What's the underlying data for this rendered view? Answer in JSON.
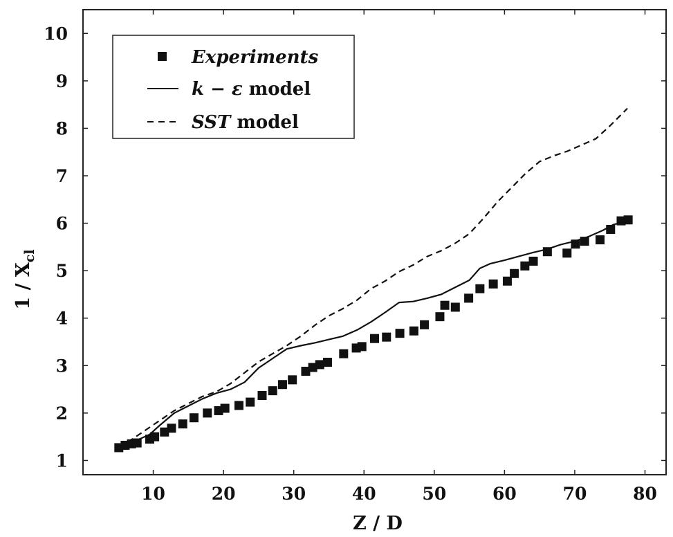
{
  "chart_data": {
    "type": "line",
    "xlabel": "Z / D",
    "ylabel_main": "1 / X",
    "ylabel_sub": "cl",
    "xlim": [
      0,
      83
    ],
    "ylim": [
      0.7,
      10.5
    ],
    "xticks": [
      10,
      20,
      30,
      40,
      50,
      60,
      70,
      80
    ],
    "yticks": [
      1,
      2,
      3,
      4,
      5,
      6,
      7,
      8,
      9,
      10
    ],
    "grid": false,
    "legend_position": "top-left",
    "legend": [
      {
        "marker": "square",
        "label_italic": "Experiments",
        "label_regular": ""
      },
      {
        "marker": "solid-line",
        "label_italic": "k − ε",
        "label_regular": " model"
      },
      {
        "marker": "dashed-line",
        "label_italic": "SST",
        "label_regular": " model"
      }
    ],
    "series": [
      {
        "name": "Experiments",
        "style": "markers",
        "x": [
          5.1,
          6,
          6.9,
          7.7,
          9.5,
          10.2,
          11.6,
          12.6,
          14.2,
          15.8,
          17.7,
          19.3,
          20.2,
          22.2,
          23.8,
          25.5,
          27,
          28.4,
          29.8,
          31.7,
          32.7,
          33.7,
          34.8,
          37.1,
          38.9,
          39.7,
          41.5,
          43.2,
          45.1,
          47.1,
          48.6,
          50.8,
          51.5,
          53,
          54.9,
          56.5,
          58.4,
          60.4,
          61.4,
          62.9,
          64.1,
          66.1,
          68.9,
          70.1,
          71.4,
          73.6,
          75.1,
          76.6,
          77.6
        ],
        "y": [
          1.27,
          1.32,
          1.35,
          1.37,
          1.45,
          1.5,
          1.6,
          1.68,
          1.77,
          1.9,
          2.0,
          2.05,
          2.1,
          2.16,
          2.23,
          2.37,
          2.47,
          2.6,
          2.7,
          2.88,
          2.96,
          3.02,
          3.07,
          3.25,
          3.37,
          3.4,
          3.57,
          3.6,
          3.68,
          3.73,
          3.86,
          4.03,
          4.27,
          4.23,
          4.42,
          4.62,
          4.72,
          4.78,
          4.94,
          5.1,
          5.2,
          5.4,
          5.37,
          5.56,
          5.62,
          5.65,
          5.87,
          6.05,
          6.07
        ]
      },
      {
        "name": "k − ε model",
        "style": "solid",
        "x": [
          5,
          7,
          9.5,
          11,
          13,
          15,
          17,
          19,
          21,
          23,
          25,
          27,
          29,
          31,
          33,
          35,
          37,
          39,
          41,
          43,
          45,
          47,
          49,
          51,
          53,
          55,
          56.5,
          58,
          60,
          62,
          64,
          66,
          68,
          70,
          72,
          74,
          75.5,
          77.5
        ],
        "y": [
          1.28,
          1.38,
          1.55,
          1.75,
          2.0,
          2.15,
          2.3,
          2.42,
          2.5,
          2.65,
          2.95,
          3.15,
          3.35,
          3.42,
          3.48,
          3.55,
          3.62,
          3.75,
          3.92,
          4.12,
          4.33,
          4.35,
          4.42,
          4.5,
          4.65,
          4.8,
          5.05,
          5.15,
          5.22,
          5.3,
          5.38,
          5.45,
          5.55,
          5.62,
          5.72,
          5.85,
          5.97,
          6.05
        ]
      },
      {
        "name": "SST model",
        "style": "dashed",
        "x": [
          5,
          7,
          9,
          11,
          13,
          15,
          17,
          19,
          21,
          23,
          25,
          27,
          29,
          31,
          33,
          35,
          37,
          39,
          41,
          43,
          45,
          47,
          49,
          51,
          53,
          55,
          57,
          59,
          61,
          63,
          65,
          67,
          69,
          71,
          73,
          75,
          77.5
        ],
        "y": [
          1.3,
          1.45,
          1.65,
          1.85,
          2.05,
          2.2,
          2.35,
          2.45,
          2.62,
          2.85,
          3.08,
          3.25,
          3.42,
          3.62,
          3.85,
          4.05,
          4.2,
          4.38,
          4.62,
          4.78,
          4.98,
          5.12,
          5.3,
          5.42,
          5.58,
          5.78,
          6.1,
          6.45,
          6.75,
          7.05,
          7.3,
          7.42,
          7.52,
          7.65,
          7.78,
          8.05,
          8.42
        ]
      }
    ]
  }
}
